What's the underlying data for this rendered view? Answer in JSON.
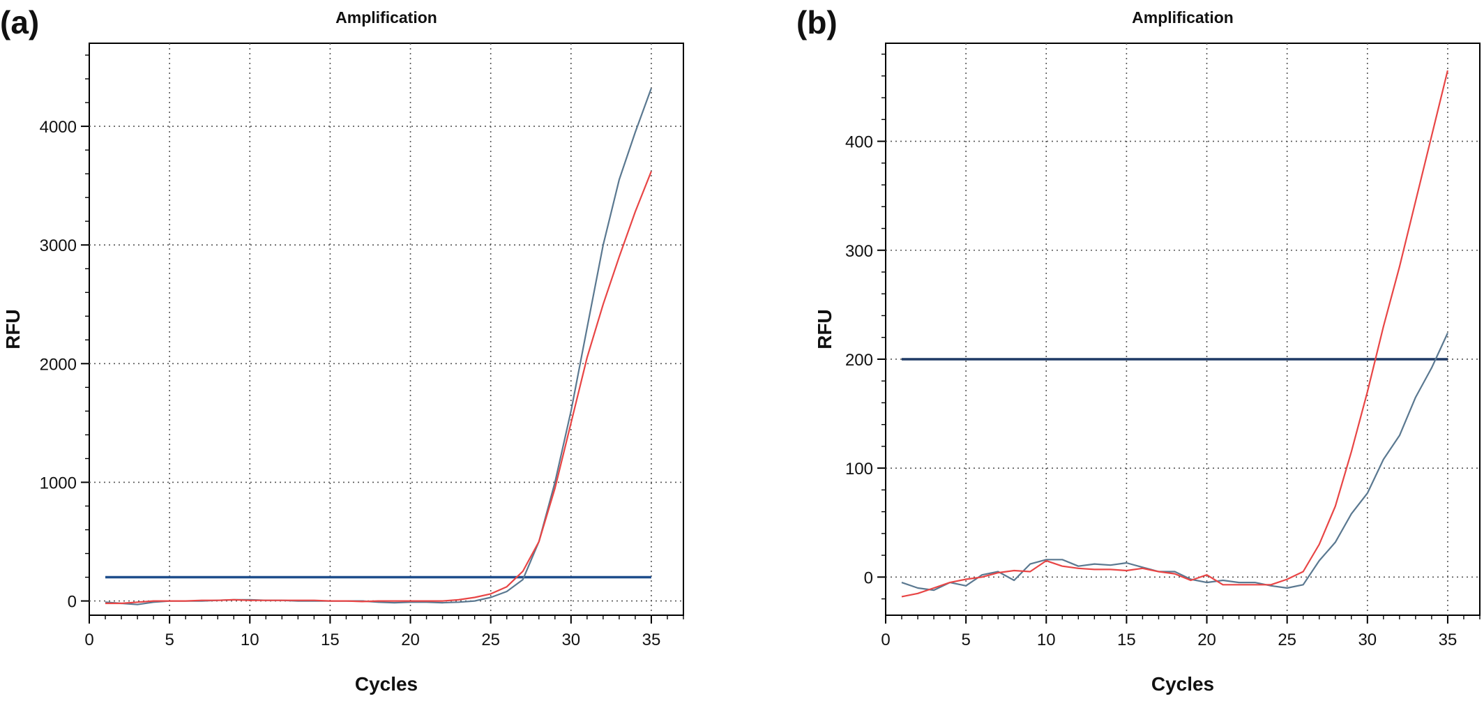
{
  "chart_data": [
    {
      "panel": "(a)",
      "type": "line",
      "title": "Amplification",
      "xlabel": "Cycles",
      "ylabel": "RFU",
      "xlim": [
        0,
        37
      ],
      "ylim": [
        -120,
        4700
      ],
      "x_ticks": [
        0,
        5,
        10,
        15,
        20,
        25,
        30,
        35
      ],
      "y_ticks": [
        0,
        1000,
        2000,
        3000,
        4000
      ],
      "grid": true,
      "threshold": {
        "value": 200,
        "x_range": [
          1,
          35
        ],
        "color": "#1f4e8c"
      },
      "series": [
        {
          "color": "#5a7890",
          "x": [
            1,
            2,
            3,
            4,
            5,
            6,
            7,
            8,
            9,
            10,
            11,
            12,
            13,
            14,
            15,
            16,
            17,
            18,
            19,
            20,
            21,
            22,
            23,
            24,
            25,
            26,
            27,
            28,
            29,
            30,
            31,
            32,
            33,
            34,
            35
          ],
          "y": [
            -10,
            -20,
            -30,
            -10,
            0,
            0,
            0,
            5,
            10,
            10,
            5,
            5,
            0,
            0,
            0,
            0,
            0,
            -10,
            -15,
            -10,
            -10,
            -15,
            -10,
            0,
            30,
            80,
            180,
            500,
            1000,
            1600,
            2300,
            3000,
            3550,
            3950,
            4320
          ]
        },
        {
          "color": "#e84545",
          "x": [
            1,
            2,
            3,
            4,
            5,
            6,
            7,
            8,
            9,
            10,
            11,
            12,
            13,
            14,
            15,
            16,
            17,
            18,
            19,
            20,
            21,
            22,
            23,
            24,
            25,
            26,
            27,
            28,
            29,
            30,
            31,
            32,
            33,
            34,
            35
          ],
          "y": [
            -20,
            -20,
            -10,
            0,
            0,
            0,
            5,
            5,
            10,
            5,
            5,
            5,
            5,
            5,
            0,
            0,
            -5,
            0,
            0,
            0,
            0,
            0,
            10,
            30,
            60,
            120,
            250,
            500,
            950,
            1500,
            2050,
            2500,
            2900,
            3280,
            3620
          ]
        }
      ]
    },
    {
      "panel": "(b)",
      "type": "line",
      "title": "Amplification",
      "xlabel": "Cycles",
      "ylabel": "RFU",
      "xlim": [
        0,
        37
      ],
      "ylim": [
        -35,
        490
      ],
      "x_ticks": [
        0,
        5,
        10,
        15,
        20,
        25,
        30,
        35
      ],
      "y_ticks": [
        0,
        100,
        200,
        300,
        400
      ],
      "grid": true,
      "threshold": {
        "value": 200,
        "x_range": [
          1,
          35
        ],
        "color": "#1f3a66"
      },
      "series": [
        {
          "color": "#5a7890",
          "x": [
            1,
            2,
            3,
            4,
            5,
            6,
            7,
            8,
            9,
            10,
            11,
            12,
            13,
            14,
            15,
            16,
            17,
            18,
            19,
            20,
            21,
            22,
            23,
            24,
            25,
            26,
            27,
            28,
            29,
            30,
            31,
            32,
            33,
            34,
            35
          ],
          "y": [
            -5,
            -10,
            -12,
            -5,
            -8,
            2,
            5,
            -3,
            12,
            16,
            16,
            10,
            12,
            11,
            13,
            9,
            5,
            5,
            -2,
            -5,
            -3,
            -5,
            -5,
            -8,
            -10,
            -7,
            15,
            32,
            58,
            77,
            108,
            130,
            165,
            192,
            224
          ]
        },
        {
          "color": "#e84545",
          "x": [
            1,
            2,
            3,
            4,
            5,
            6,
            7,
            8,
            9,
            10,
            11,
            12,
            13,
            14,
            15,
            16,
            17,
            18,
            19,
            20,
            21,
            22,
            23,
            24,
            25,
            26,
            27,
            28,
            29,
            30,
            31,
            32,
            33,
            34,
            35
          ],
          "y": [
            -18,
            -15,
            -10,
            -5,
            -2,
            0,
            4,
            6,
            5,
            15,
            10,
            8,
            7,
            7,
            6,
            8,
            5,
            3,
            -3,
            2,
            -7,
            -7,
            -7,
            -7,
            -2,
            5,
            30,
            65,
            115,
            170,
            230,
            285,
            345,
            405,
            465
          ]
        }
      ]
    }
  ]
}
